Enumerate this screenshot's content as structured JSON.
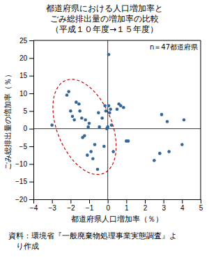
{
  "chart_data": {
    "type": "scatter",
    "title": [
      "都道府県における人口増加率と",
      "ごみ総排出量の増加率の比較",
      "（平成１０年度→１５年度）"
    ],
    "annotation": "n＝47都道府県",
    "xlabel": "都道府県人口増加率（％）",
    "ylabel": "ごみ総排出量の増加率（％）",
    "source": [
      "資料：環境省『一般廃棄物処理事業実態調査』よ",
      "　り作成"
    ],
    "xlim": [
      -4,
      5
    ],
    "ylim": [
      -20,
      25
    ],
    "xticks": [
      -4,
      -3,
      -2,
      -1,
      0,
      1,
      2,
      3,
      4,
      5
    ],
    "yticks": [
      -20,
      -15,
      -10,
      -5,
      0,
      5,
      10,
      15,
      20,
      25
    ],
    "color": "#336699",
    "x": [
      -3.0,
      -2.2,
      -2.1,
      -2.0,
      -1.9,
      -1.8,
      -1.7,
      -1.55,
      -1.5,
      -1.4,
      -1.35,
      -1.25,
      -1.2,
      -1.1,
      -1.05,
      -1.0,
      -0.9,
      -0.8,
      -0.7,
      -0.55,
      -0.5,
      -0.45,
      -0.3,
      -0.2,
      -0.15,
      -0.1,
      -0.05,
      0.0,
      0.05,
      0.1,
      0.15,
      0.2,
      0.3,
      0.5,
      0.6,
      0.7,
      0.85,
      1.0,
      1.1,
      2.5,
      2.8,
      2.9,
      3.2,
      3.3,
      4.0,
      4.1,
      0.05
    ],
    "values": [
      1.0,
      9.5,
      10.5,
      5.0,
      3.5,
      2.5,
      7.5,
      7.0,
      5.0,
      3.0,
      -2.5,
      -2.0,
      2.5,
      -7.5,
      0.5,
      1.5,
      -6.5,
      -8.5,
      -4.5,
      -11.5,
      4.5,
      0.5,
      3.0,
      -5.0,
      6.5,
      5.0,
      0.0,
      0.5,
      6.5,
      4.5,
      5.5,
      1.0,
      -6.5,
      5.5,
      7.0,
      6.5,
      6.0,
      -3.5,
      -3.5,
      -9.0,
      -7.0,
      4.0,
      2.0,
      -6.5,
      -4.5,
      2.5,
      21.0
    ],
    "ellipse": {
      "cx": -1.25,
      "cy": 0.5,
      "rx": 1.55,
      "ry": 13.5,
      "angle": 3,
      "color": "#cc0000"
    },
    "hlines": [
      0
    ],
    "vlines": [
      0
    ]
  }
}
